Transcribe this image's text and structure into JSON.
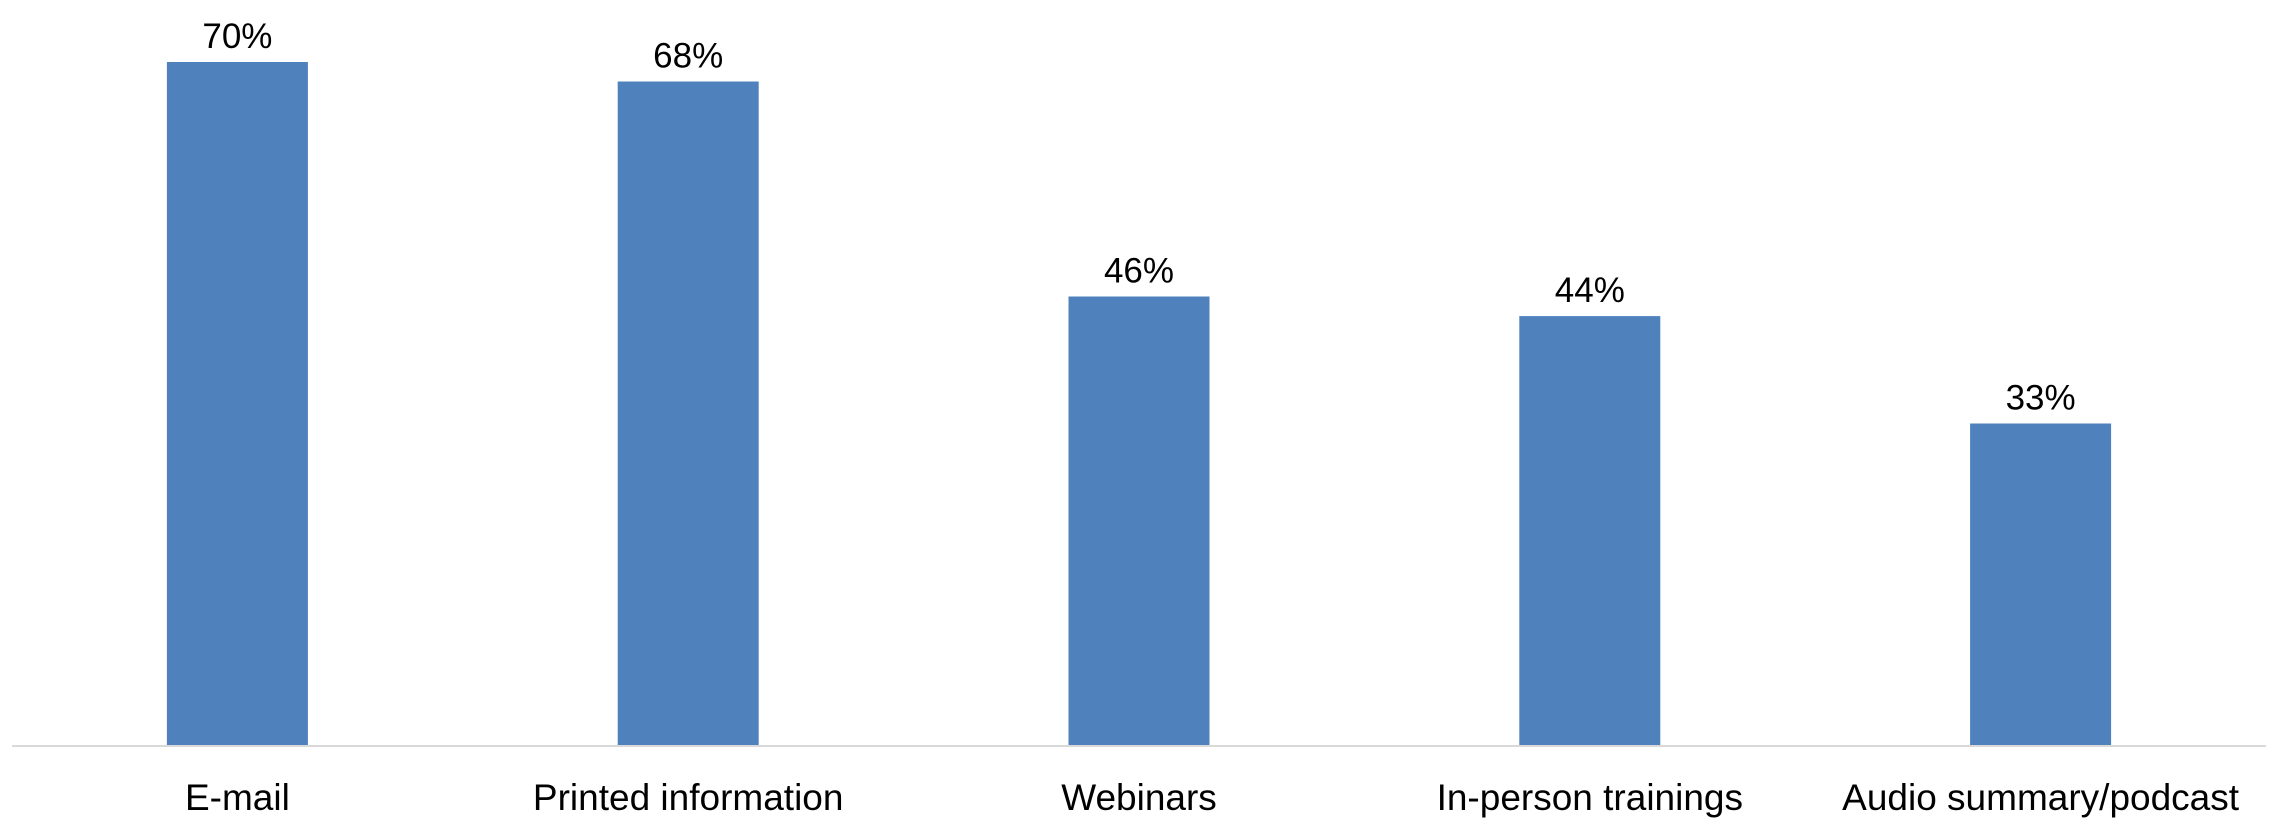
{
  "chart_data": {
    "type": "bar",
    "title": "",
    "xlabel": "",
    "ylabel": "",
    "categories": [
      "E-mail",
      "Printed information",
      "Webinars",
      "In-person trainings",
      "Audio summary/podcast"
    ],
    "values": [
      70,
      68,
      46,
      44,
      33
    ],
    "value_labels": [
      "70%",
      "68%",
      "46%",
      "44%",
      "33%"
    ],
    "unit": "%",
    "ylim": [
      0,
      70
    ],
    "grid": false,
    "legend": "none",
    "colors": {
      "bar": "#4F81BD",
      "axis": "#D9D9D9",
      "text": "#000000"
    }
  }
}
